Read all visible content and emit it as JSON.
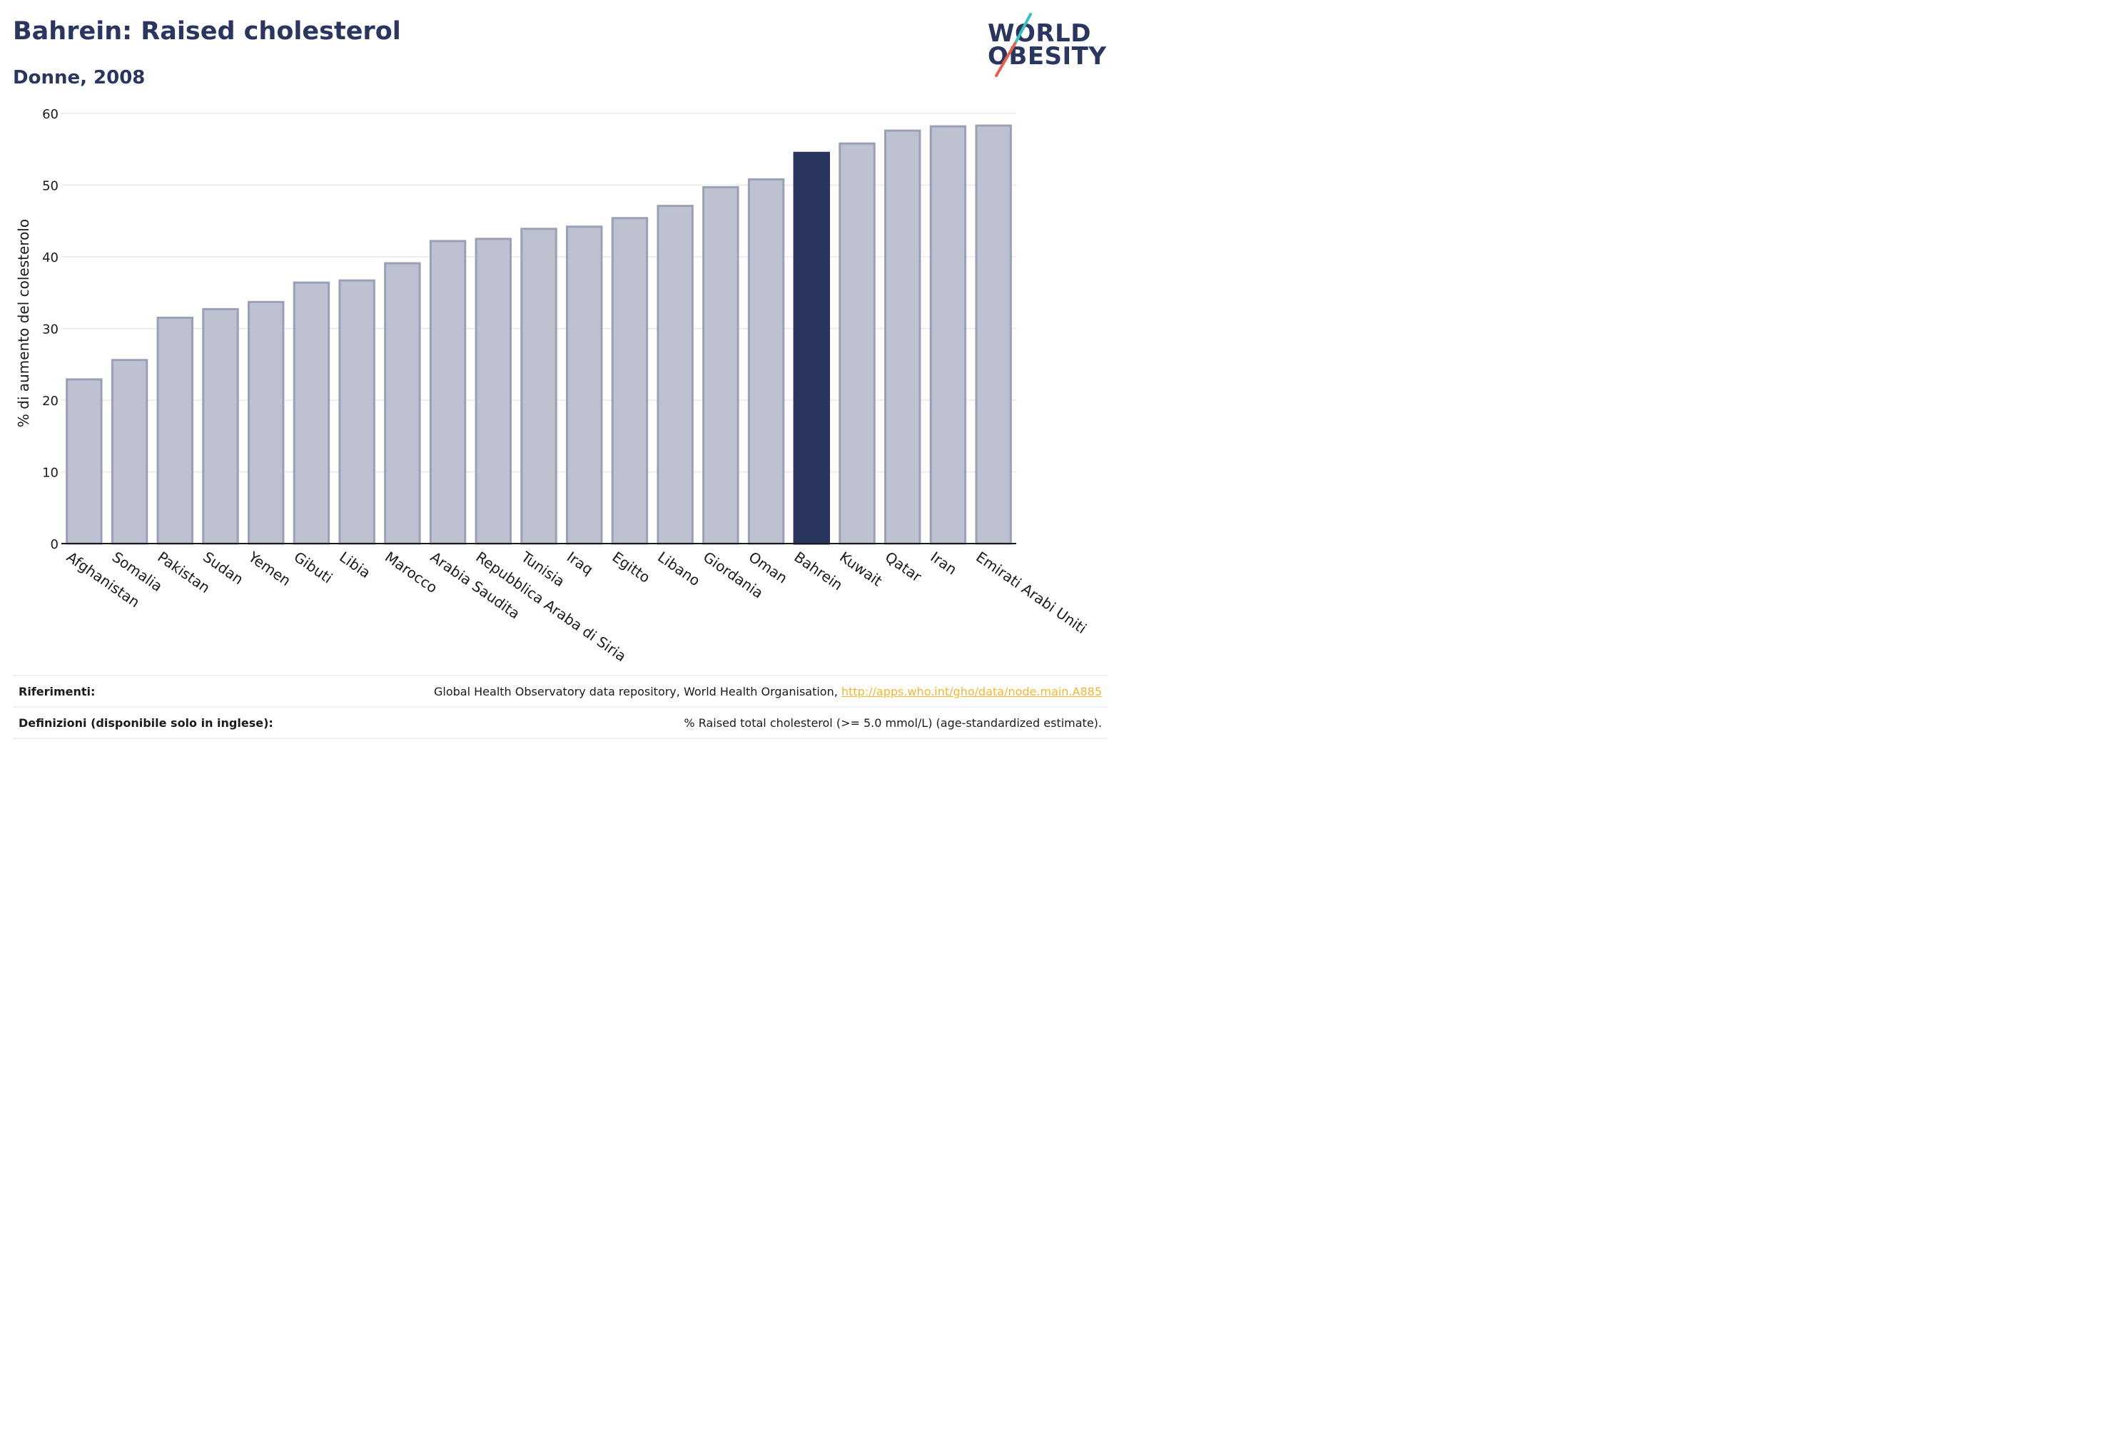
{
  "header": {
    "title": "Bahrein: Raised cholesterol",
    "subtitle": "Donne, 2008"
  },
  "logo": {
    "line1": "WORLD",
    "line2": "OBESITY"
  },
  "colors": {
    "bar": "#bec1cf",
    "bar_stroke": "#9aa0b8",
    "highlight": "#2a3560",
    "grid": "#e8e8ee"
  },
  "chart_data": {
    "type": "bar",
    "categories": [
      "Afghanistan",
      "Somalia",
      "Pakistan",
      "Sudan",
      "Yemen",
      "Gibuti",
      "Libia",
      "Marocco",
      "Arabia Saudita",
      "Repubblica Araba di Siria",
      "Tunisia",
      "Iraq",
      "Egitto",
      "Libano",
      "Giordania",
      "Oman",
      "Bahrein",
      "Kuwait",
      "Qatar",
      "Iran",
      "Emirati Arabi Uniti"
    ],
    "values": [
      22.9,
      25.6,
      31.5,
      32.7,
      33.7,
      36.4,
      36.7,
      39.1,
      42.2,
      42.5,
      43.9,
      44.2,
      45.4,
      47.1,
      49.7,
      50.8,
      54.5,
      55.8,
      57.6,
      58.2,
      58.3
    ],
    "highlight": "Bahrein",
    "ylabel": "% di aumento del colesterolo",
    "xlabel": "",
    "ylim": [
      0,
      60
    ],
    "yticks": [
      0,
      10,
      20,
      30,
      40,
      50,
      60
    ],
    "grid": true
  },
  "footer": {
    "references_label": "Riferimenti:",
    "references_text": "Global Health Observatory data repository, World Health Organisation, ",
    "references_link": "http://apps.who.int/gho/data/node.main.A885",
    "definitions_label": "Definizioni (disponibile solo in inglese):",
    "definitions_text": "% Raised total cholesterol (>= 5.0 mmol/L) (age-standardized estimate)."
  }
}
